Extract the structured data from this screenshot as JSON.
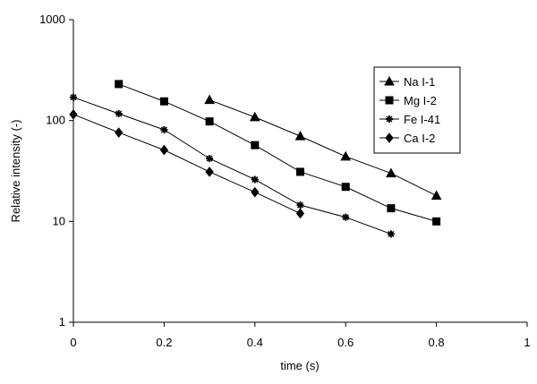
{
  "chart_data": {
    "type": "line",
    "title": "",
    "xlabel": "time (s)",
    "ylabel": "Relative intensity (-)",
    "xlim": [
      0,
      1
    ],
    "ylim": [
      1,
      1000
    ],
    "yscale": "log",
    "x_ticks": [
      "0",
      "0.2",
      "0.4",
      "0.6",
      "0.8",
      "1"
    ],
    "x_tick_values": [
      0,
      0.2,
      0.4,
      0.6,
      0.8,
      1
    ],
    "y_ticks": [
      "1",
      "10",
      "100",
      "1000"
    ],
    "y_tick_values": [
      1,
      10,
      100,
      1000
    ],
    "grid": false,
    "legend_position": "top-right",
    "series": [
      {
        "name": "Na I-1",
        "marker": "triangle",
        "x": [
          0.3,
          0.4,
          0.5,
          0.6,
          0.7,
          0.8
        ],
        "values": [
          160,
          108,
          70,
          44,
          30,
          18
        ]
      },
      {
        "name": "Mg I-2",
        "marker": "square",
        "x": [
          0.1,
          0.2,
          0.3,
          0.4,
          0.5,
          0.6,
          0.7,
          0.8
        ],
        "values": [
          230,
          155,
          98,
          57,
          31,
          22,
          13.5,
          10
        ]
      },
      {
        "name": "Fe I-41",
        "marker": "asterisk",
        "x": [
          0,
          0.1,
          0.2,
          0.3,
          0.4,
          0.5,
          0.6,
          0.7
        ],
        "values": [
          170,
          117,
          81,
          42,
          26,
          14.5,
          11,
          7.5
        ]
      },
      {
        "name": "Ca I-2",
        "marker": "diamond",
        "x": [
          0,
          0.1,
          0.2,
          0.3,
          0.4,
          0.5
        ],
        "values": [
          115,
          76,
          51,
          31,
          19.5,
          12
        ]
      }
    ],
    "colors": {
      "line": "#000000",
      "background": "#ffffff"
    }
  }
}
